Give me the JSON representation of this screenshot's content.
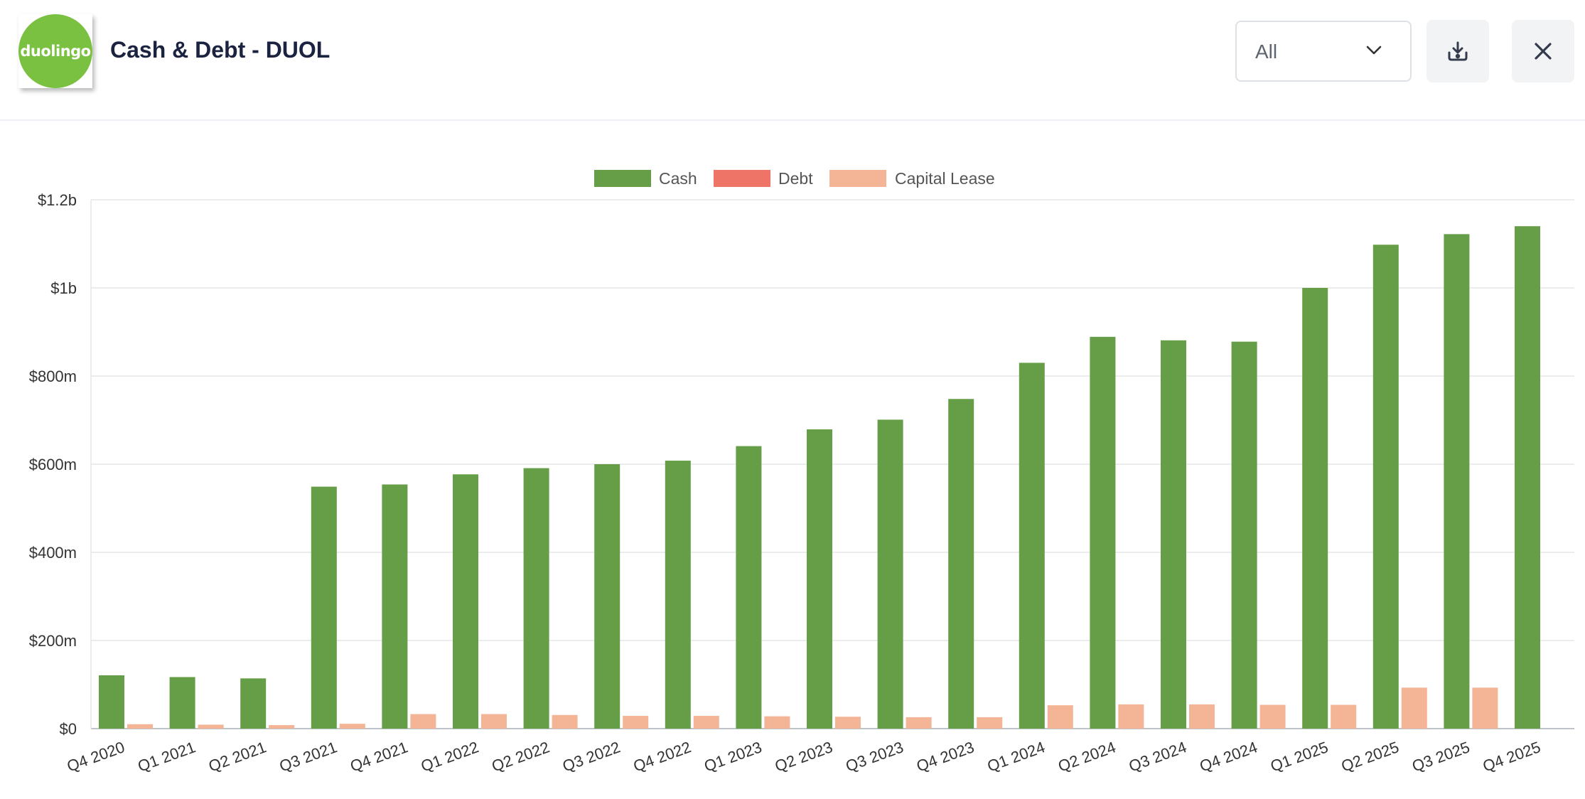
{
  "header": {
    "logo_text": "duolingo",
    "title": "Cash & Debt - DUOL",
    "select_value": "All",
    "icons": {
      "download": "download-icon",
      "close": "close-icon"
    }
  },
  "colors": {
    "cash": "#659e47",
    "debt": "#ef7468",
    "capital_lease": "#f4b596"
  },
  "chart_data": {
    "type": "bar",
    "categories": [
      "Q4 2020",
      "Q1 2021",
      "Q2 2021",
      "Q3 2021",
      "Q4 2021",
      "Q1 2022",
      "Q2 2022",
      "Q3 2022",
      "Q4 2022",
      "Q1 2023",
      "Q2 2023",
      "Q3 2023",
      "Q4 2023",
      "Q1 2024",
      "Q2 2024",
      "Q3 2024",
      "Q4 2024",
      "Q1 2025",
      "Q2 2025",
      "Q3 2025",
      "Q4 2025"
    ],
    "series": [
      {
        "name": "Cash",
        "values": [
          121,
          117,
          114,
          549,
          554,
          577,
          591,
          600,
          608,
          641,
          679,
          701,
          748,
          830,
          889,
          881,
          878,
          1000,
          1098,
          1122,
          1140
        ]
      },
      {
        "name": "Debt",
        "values": [
          0,
          0,
          0,
          0,
          0,
          0,
          0,
          0,
          0,
          0,
          0,
          0,
          0,
          0,
          0,
          0,
          0,
          0,
          0,
          0,
          0
        ]
      },
      {
        "name": "Capital Lease",
        "values": [
          10,
          9,
          8,
          11,
          33,
          33,
          31,
          29,
          29,
          28,
          27,
          26,
          26,
          53,
          55,
          55,
          54,
          54,
          93,
          93,
          0
        ]
      }
    ],
    "ylim": [
      0,
      1200
    ],
    "yticks": [
      0,
      200,
      400,
      600,
      800,
      1000,
      1200
    ],
    "ytick_labels": [
      "$0",
      "$200m",
      "$400m",
      "$600m",
      "$800m",
      "$1b",
      "$1.2b"
    ],
    "legend_position": "top-center",
    "grid": true
  }
}
